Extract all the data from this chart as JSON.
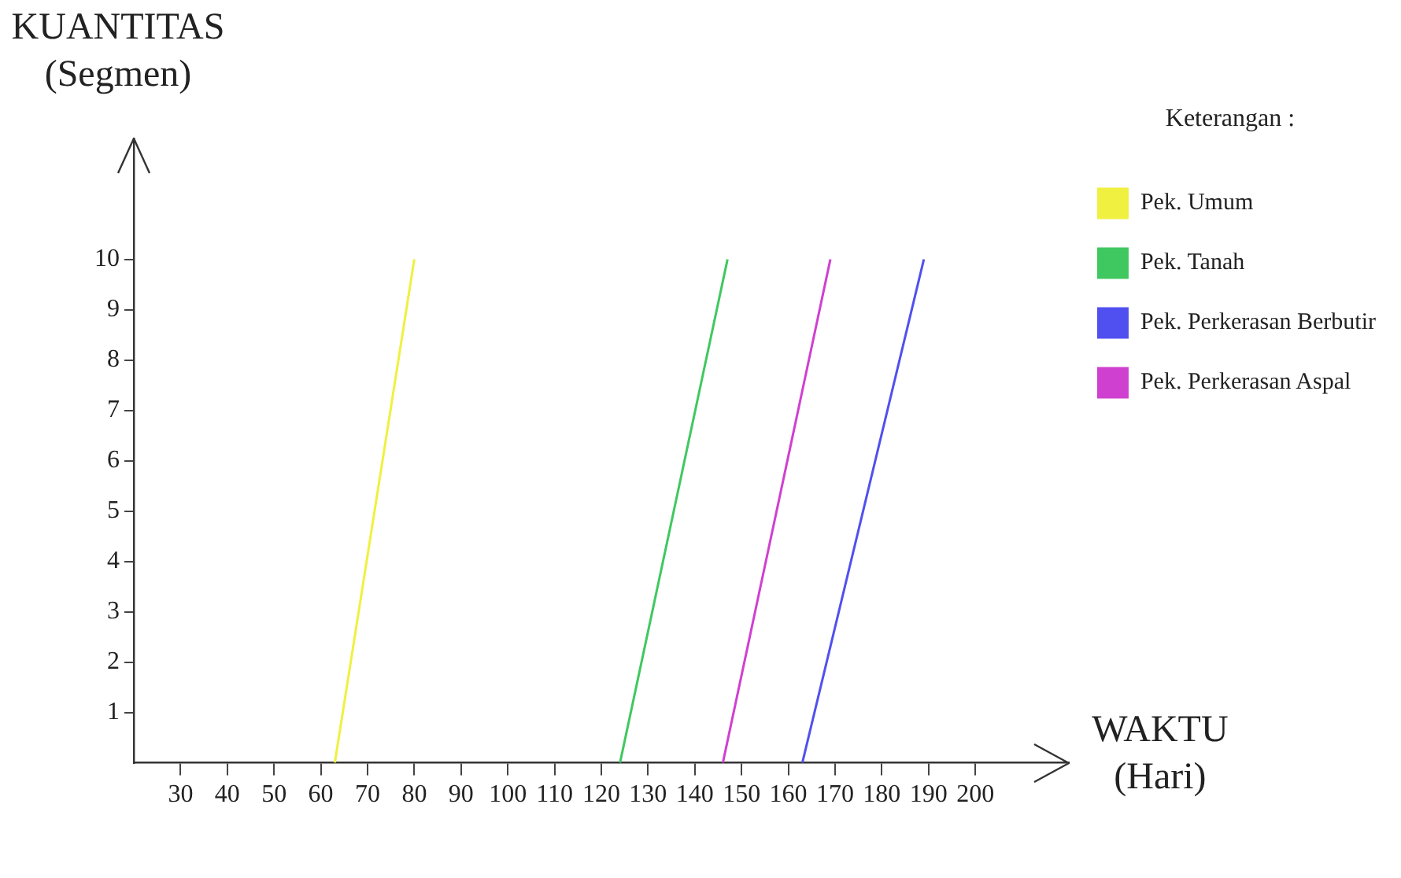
{
  "chart_data": {
    "type": "line",
    "xlabel": "WAKTU (Hari)",
    "ylabel": "KUANTITAS (Segmen)",
    "legend_title": "Keterangan :",
    "series": [
      {
        "name": "Pek. Umum",
        "color": "#f0f040",
        "x": [
          63,
          80
        ],
        "values": [
          0,
          10
        ]
      },
      {
        "name": "Pek. Tanah",
        "color": "#40c860",
        "x": [
          124,
          147
        ],
        "values": [
          0,
          10
        ]
      },
      {
        "name": "Pek. Perkerasan Berbutir",
        "color": "#5050f0",
        "x": [
          163,
          189
        ],
        "values": [
          0,
          10
        ]
      },
      {
        "name": "Pek. Perkerasan Aspal",
        "color": "#d040d0",
        "x": [
          146,
          169
        ],
        "values": [
          0,
          10
        ]
      }
    ],
    "xlim": [
      20,
      220
    ],
    "xticks": [
      30,
      40,
      50,
      60,
      70,
      80,
      90,
      100,
      110,
      120,
      130,
      140,
      150,
      160,
      170,
      180,
      190,
      200
    ],
    "ylim": [
      0,
      12.4
    ],
    "yticks": [
      1,
      2,
      3,
      4,
      5,
      6,
      7,
      8,
      9,
      10
    ],
    "grid": false,
    "legend": "right",
    "marker": "none",
    "line_style": "solid"
  }
}
